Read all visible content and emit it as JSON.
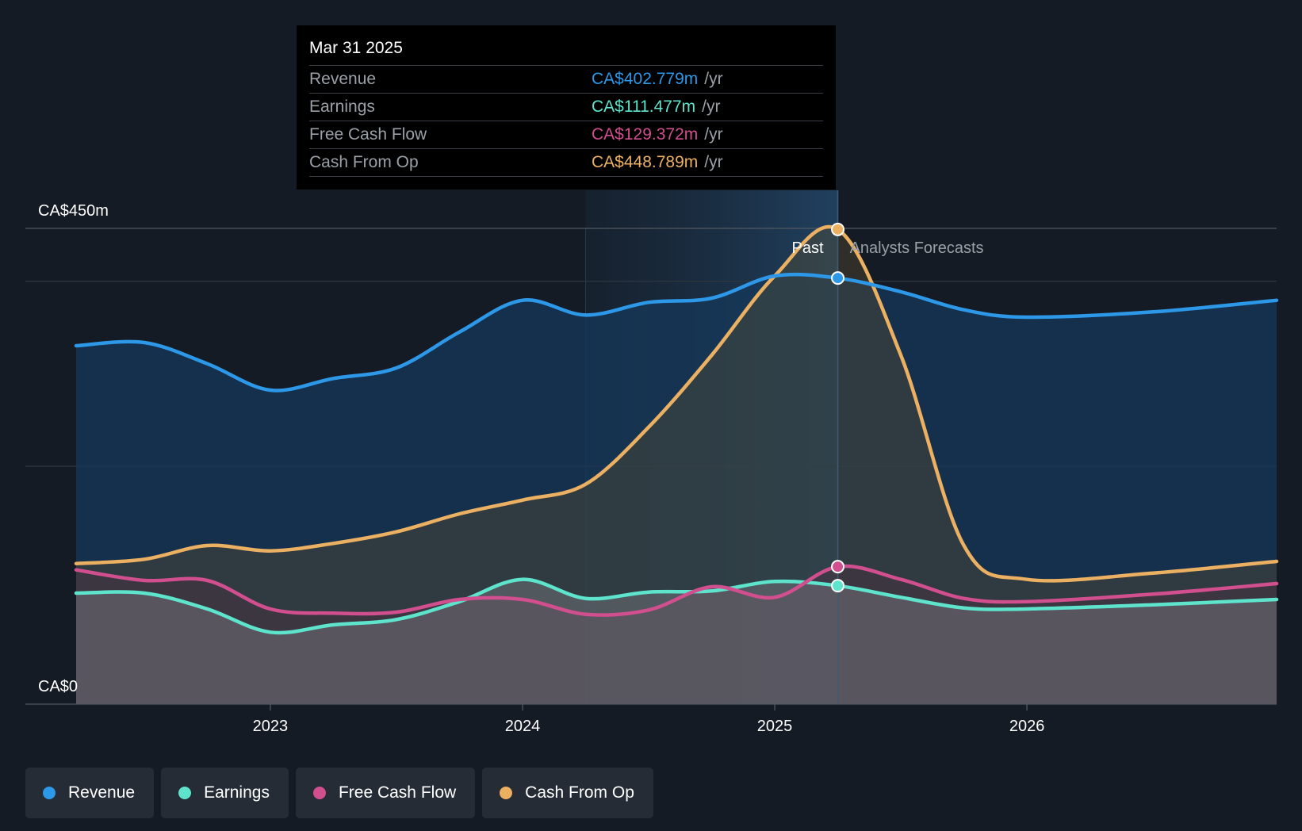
{
  "tooltip": {
    "date": "Mar 31 2025",
    "rows": [
      {
        "label": "Revenue",
        "value": "CA$402.779m",
        "unit": "/yr",
        "color": "#2d97e8"
      },
      {
        "label": "Earnings",
        "value": "CA$111.477m",
        "unit": "/yr",
        "color": "#5ee3cc"
      },
      {
        "label": "Free Cash Flow",
        "value": "CA$129.372m",
        "unit": "/yr",
        "color": "#d14e8f"
      },
      {
        "label": "Cash From Op",
        "value": "CA$448.789m",
        "unit": "/yr",
        "color": "#ebb062"
      }
    ]
  },
  "labels": {
    "past": "Past",
    "forecast": "Analysts Forecasts"
  },
  "legend": [
    {
      "label": "Revenue",
      "color": "#2d97e8"
    },
    {
      "label": "Earnings",
      "color": "#5ee3cc"
    },
    {
      "label": "Free Cash Flow",
      "color": "#d14e8f"
    },
    {
      "label": "Cash From Op",
      "color": "#ebb062"
    }
  ],
  "chart_data": {
    "type": "area",
    "title": "",
    "unit": "CA$m",
    "y_tick_labels": [
      "CA$0",
      "CA$450m"
    ],
    "ylim": [
      0,
      450
    ],
    "xlim": [
      2022.23,
      2026.99
    ],
    "x_tick_labels": [
      "2023",
      "2024",
      "2025",
      "2026"
    ],
    "x_ticks": [
      2023,
      2024,
      2025,
      2026
    ],
    "past_forecast_divider": 2025.25,
    "highlight_start": 2024.25,
    "series": [
      {
        "name": "Revenue",
        "color": "#2d97e8",
        "points": [
          [
            2022.23,
            339
          ],
          [
            2022.5,
            342
          ],
          [
            2022.75,
            322
          ],
          [
            2023.0,
            297
          ],
          [
            2023.25,
            308
          ],
          [
            2023.5,
            318
          ],
          [
            2023.75,
            352
          ],
          [
            2024.0,
            382
          ],
          [
            2024.25,
            368
          ],
          [
            2024.5,
            380
          ],
          [
            2024.75,
            384
          ],
          [
            2025.0,
            405
          ],
          [
            2025.25,
            403
          ],
          [
            2025.5,
            390
          ],
          [
            2025.75,
            373
          ],
          [
            2026.0,
            366
          ],
          [
            2026.5,
            371
          ],
          [
            2026.99,
            382
          ]
        ]
      },
      {
        "name": "Earnings",
        "color": "#5ee3cc",
        "points": [
          [
            2022.23,
            105
          ],
          [
            2022.5,
            105
          ],
          [
            2022.75,
            90
          ],
          [
            2023.0,
            68
          ],
          [
            2023.25,
            75
          ],
          [
            2023.5,
            80
          ],
          [
            2023.75,
            97
          ],
          [
            2024.0,
            118
          ],
          [
            2024.25,
            100
          ],
          [
            2024.5,
            106
          ],
          [
            2024.75,
            107
          ],
          [
            2025.0,
            116
          ],
          [
            2025.25,
            112
          ],
          [
            2025.5,
            101
          ],
          [
            2025.75,
            91
          ],
          [
            2026.0,
            90
          ],
          [
            2026.5,
            94
          ],
          [
            2026.99,
            99
          ]
        ]
      },
      {
        "name": "Free Cash Flow",
        "color": "#d14e8f",
        "points": [
          [
            2022.23,
            127
          ],
          [
            2022.5,
            117
          ],
          [
            2022.75,
            117
          ],
          [
            2023.0,
            90
          ],
          [
            2023.25,
            86
          ],
          [
            2023.5,
            87
          ],
          [
            2023.75,
            99
          ],
          [
            2024.0,
            99
          ],
          [
            2024.25,
            85
          ],
          [
            2024.5,
            89
          ],
          [
            2024.75,
            111
          ],
          [
            2025.0,
            101
          ],
          [
            2025.25,
            130
          ],
          [
            2025.5,
            118
          ],
          [
            2025.75,
            100
          ],
          [
            2026.0,
            97
          ],
          [
            2026.5,
            104
          ],
          [
            2026.99,
            114
          ]
        ]
      },
      {
        "name": "Cash From Op",
        "color": "#ebb062",
        "points": [
          [
            2022.23,
            133
          ],
          [
            2022.5,
            137
          ],
          [
            2022.75,
            150
          ],
          [
            2023.0,
            145
          ],
          [
            2023.25,
            152
          ],
          [
            2023.5,
            163
          ],
          [
            2023.75,
            180
          ],
          [
            2024.0,
            193
          ],
          [
            2024.25,
            208
          ],
          [
            2024.5,
            262
          ],
          [
            2024.75,
            330
          ],
          [
            2025.0,
            405
          ],
          [
            2025.25,
            449
          ],
          [
            2025.5,
            330
          ],
          [
            2025.75,
            150
          ],
          [
            2026.0,
            118
          ],
          [
            2026.5,
            124
          ],
          [
            2026.99,
            135
          ]
        ]
      }
    ]
  }
}
